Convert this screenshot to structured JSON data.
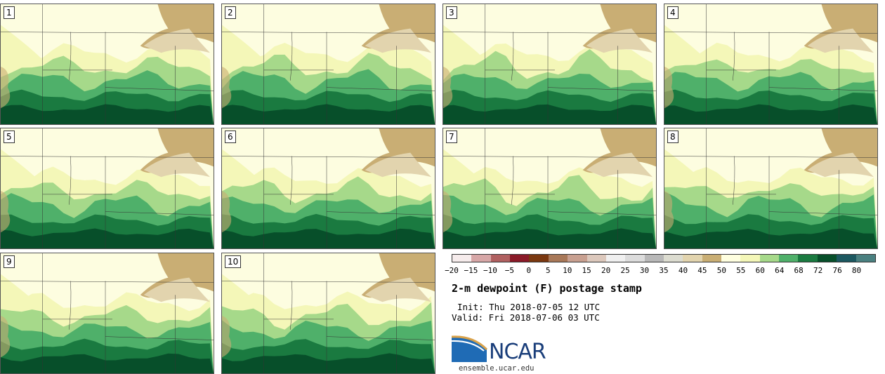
{
  "panels": [
    {
      "label": "1"
    },
    {
      "label": "2"
    },
    {
      "label": "3"
    },
    {
      "label": "4"
    },
    {
      "label": "5"
    },
    {
      "label": "6"
    },
    {
      "label": "7"
    },
    {
      "label": "8"
    },
    {
      "label": "9"
    },
    {
      "label": "10"
    }
  ],
  "colorbar": {
    "colors": [
      "#f6ecec",
      "#d7a7a7",
      "#b06060",
      "#8a1a28",
      "#7a3810",
      "#a87858",
      "#c8a090",
      "#dcc8bc",
      "#f0f0f0",
      "#dcdcdc",
      "#b8b8b8",
      "#dcdcd0",
      "#e2d4ae",
      "#c9ae74",
      "#ffffe0",
      "#f4f7b8",
      "#a6d98a",
      "#4fb06a",
      "#1a7a40",
      "#074f2a",
      "#1c5860",
      "#4a8080"
    ],
    "tick_labels": [
      "−20",
      "−15",
      "−10",
      "−5",
      "0",
      "5",
      "10",
      "15",
      "20",
      "25",
      "30",
      "35",
      "40",
      "45",
      "50",
      "55",
      "60",
      "64",
      "68",
      "72",
      "76",
      "80"
    ]
  },
  "title": "2-m dewpoint (F) postage stamp",
  "init": "Init: Thu 2018-07-05 12 UTC",
  "valid": "Valid: Fri 2018-07-06 03 UTC",
  "logo": {
    "text": "NCAR",
    "brand_color": "#1a3e7a",
    "accent_color": "#1f6bb5"
  },
  "site": "ensemble.ucar.edu"
}
